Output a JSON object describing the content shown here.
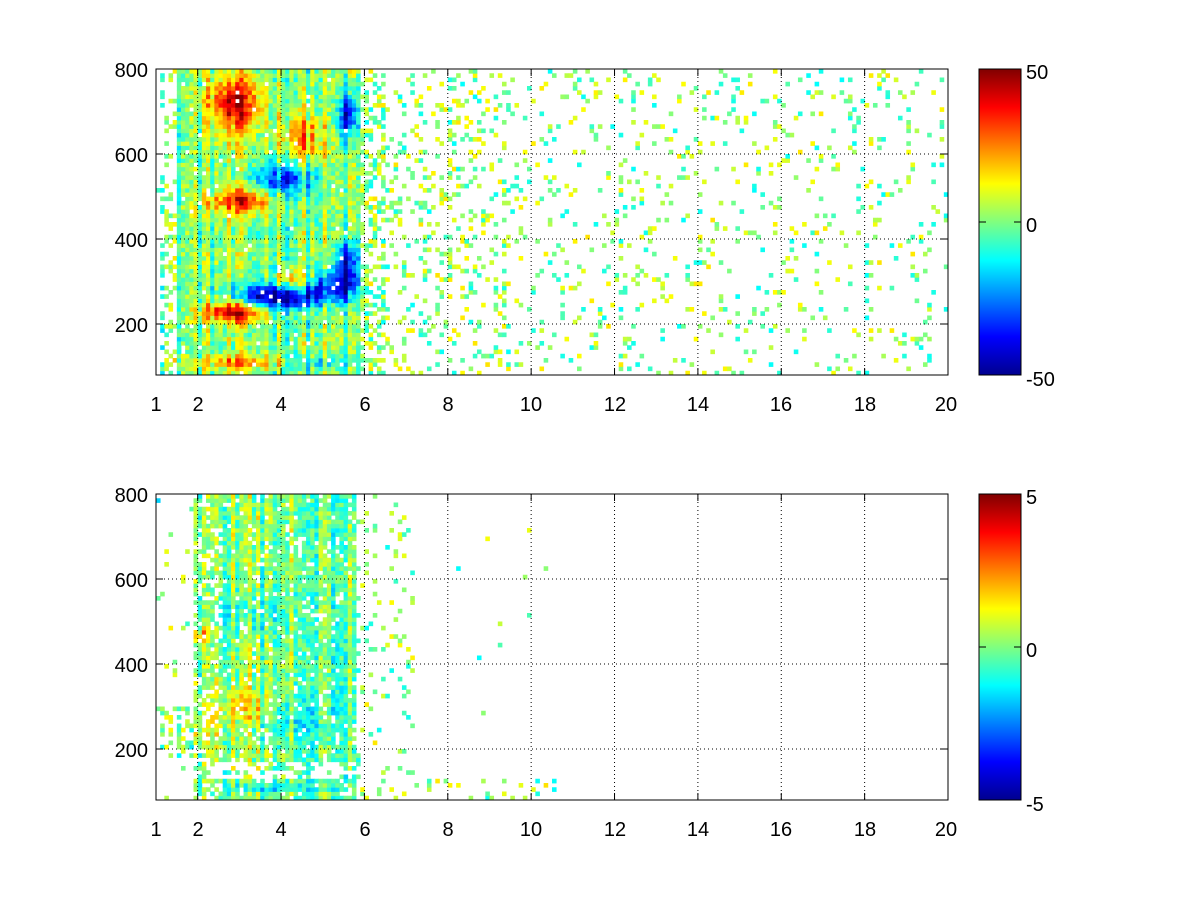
{
  "chart_data": [
    {
      "type": "heatmap",
      "title": "",
      "xlabel": "",
      "ylabel": "",
      "xlim": [
        1,
        20
      ],
      "ylim": [
        80,
        800
      ],
      "xticks": [
        "1",
        "2",
        "4",
        "6",
        "8",
        "10",
        "12",
        "14",
        "16",
        "18",
        "20"
      ],
      "yticks": [
        "200",
        "400",
        "600",
        "800"
      ],
      "grid": true,
      "colorbar": {
        "min": -50,
        "max": 50,
        "ticks": [
          "50",
          "0",
          "-50"
        ],
        "colormap": "jet"
      },
      "blobs": [
        {
          "x": 2.9,
          "y": 230,
          "value": 45,
          "sx": 0.55,
          "sy": 18
        },
        {
          "x": 3.8,
          "y": 265,
          "value": -48,
          "sx": 0.7,
          "sy": 22
        },
        {
          "x": 4.4,
          "y": 300,
          "value": 35,
          "sx": 0.35,
          "sy": 20
        },
        {
          "x": 5.0,
          "y": 290,
          "value": -35,
          "sx": 0.45,
          "sy": 25
        },
        {
          "x": 5.6,
          "y": 330,
          "value": -45,
          "sx": 0.2,
          "sy": 45
        },
        {
          "x": 3.1,
          "y": 490,
          "value": 35,
          "sx": 0.6,
          "sy": 20
        },
        {
          "x": 4.1,
          "y": 540,
          "value": -30,
          "sx": 0.5,
          "sy": 28
        },
        {
          "x": 5.6,
          "y": 690,
          "value": -40,
          "sx": 0.18,
          "sy": 40
        },
        {
          "x": 2.9,
          "y": 720,
          "value": 40,
          "sx": 0.45,
          "sy": 45
        },
        {
          "x": 3.5,
          "y": 110,
          "value": 30,
          "sx": 1.0,
          "sy": 12
        },
        {
          "x": 4.6,
          "y": 110,
          "value": -25,
          "sx": 0.8,
          "sy": 12
        },
        {
          "x": 4.5,
          "y": 640,
          "value": 25,
          "sx": 0.4,
          "sy": 40
        }
      ]
    },
    {
      "type": "heatmap",
      "title": "",
      "xlabel": "",
      "ylabel": "",
      "xlim": [
        1,
        20
      ],
      "ylim": [
        80,
        800
      ],
      "xticks": [
        "1",
        "2",
        "4",
        "6",
        "8",
        "10",
        "12",
        "14",
        "16",
        "18",
        "20"
      ],
      "yticks": [
        "200",
        "400",
        "600",
        "800"
      ],
      "grid": true,
      "colorbar": {
        "min": -5,
        "max": 5,
        "ticks": [
          "5",
          "0",
          "-5"
        ],
        "colormap": "jet"
      },
      "blobs": [
        {
          "x": 3.2,
          "y": 300,
          "value": 1.5,
          "sx": 0.6,
          "sy": 30
        },
        {
          "x": 4.2,
          "y": 280,
          "value": -1.2,
          "sx": 0.6,
          "sy": 40
        },
        {
          "x": 3.3,
          "y": 520,
          "value": -1.0,
          "sx": 0.7,
          "sy": 40
        },
        {
          "x": 3.5,
          "y": 110,
          "value": -1.3,
          "sx": 1.0,
          "sy": 10
        },
        {
          "x": 5.6,
          "y": 600,
          "value": 0.5,
          "sx": 0.2,
          "sy": 80
        },
        {
          "x": 2.1,
          "y": 470,
          "value": 2.2,
          "sx": 0.1,
          "sy": 12
        },
        {
          "x": 2.2,
          "y": 240,
          "value": 1.0,
          "sx": 0.3,
          "sy": 30
        }
      ]
    }
  ]
}
